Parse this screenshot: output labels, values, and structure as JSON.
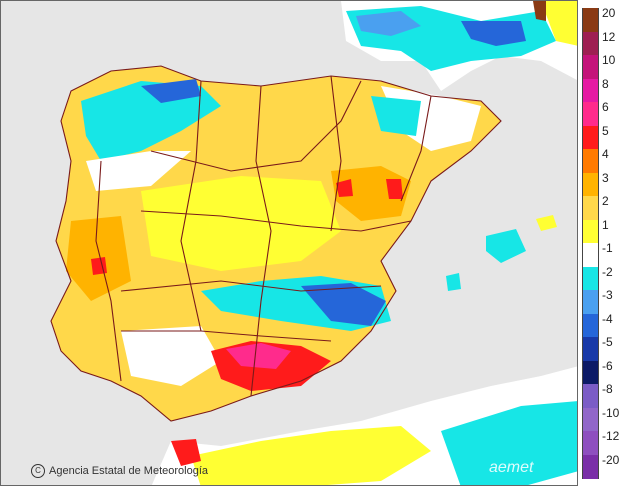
{
  "attribution": {
    "text": "Agencia Estatal de Meteorología",
    "logo_glyph": "C",
    "watermark": "aemet"
  },
  "legend": {
    "items": [
      {
        "label": "20",
        "color": "#8a3a14"
      },
      {
        "label": "12",
        "color": "#9e1f52"
      },
      {
        "label": "10",
        "color": "#c4137a"
      },
      {
        "label": "8",
        "color": "#e61aa3"
      },
      {
        "label": "6",
        "color": "#ff2b8c"
      },
      {
        "label": "5",
        "color": "#ff1b1b"
      },
      {
        "label": "4",
        "color": "#ff7a00"
      },
      {
        "label": "3",
        "color": "#ffb300"
      },
      {
        "label": "2",
        "color": "#ffd84a"
      },
      {
        "label": "1",
        "color": "#ffff33"
      },
      {
        "label": "-1",
        "color": "#ffffff"
      },
      {
        "label": "-2",
        "color": "#17e6e6"
      },
      {
        "label": "-3",
        "color": "#4aa0f0"
      },
      {
        "label": "-4",
        "color": "#2566d9"
      },
      {
        "label": "-5",
        "color": "#1839a8"
      },
      {
        "label": "-6",
        "color": "#0c1a66"
      },
      {
        "label": "-8",
        "color": "#7b5cc6"
      },
      {
        "label": "-10",
        "color": "#9166c9"
      },
      {
        "label": "-12",
        "color": "#8e4fbf"
      },
      {
        "label": "-20",
        "color": "#7a2fa8"
      }
    ]
  },
  "colors": {
    "sea": "#e6e6e6",
    "borders": "#7a1a1a"
  }
}
